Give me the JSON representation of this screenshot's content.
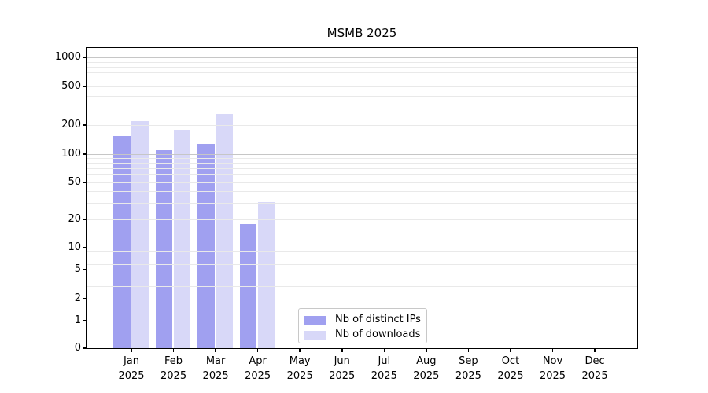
{
  "figure": {
    "background": "#ffffff"
  },
  "chart_data": {
    "type": "bar",
    "title": "MSMB 2025",
    "categories": [
      "Jan 2025",
      "Feb 2025",
      "Mar 2025",
      "Apr 2025",
      "May 2025",
      "Jun 2025",
      "Jul 2025",
      "Aug 2025",
      "Sep 2025",
      "Oct 2025",
      "Nov 2025",
      "Dec 2025"
    ],
    "series": [
      {
        "name": "Nb of distinct IPs",
        "color": "#a0a0f0",
        "values": [
          155,
          110,
          128,
          18,
          null,
          null,
          null,
          null,
          null,
          null,
          null,
          null
        ]
      },
      {
        "name": "Nb of downloads",
        "color": "#d8d8f8",
        "values": [
          220,
          180,
          260,
          31,
          null,
          null,
          null,
          null,
          null,
          null,
          null,
          null
        ]
      }
    ],
    "y_axis": {
      "scale": "log-like with 0 baseline",
      "tick_values": [
        0,
        1,
        2,
        5,
        10,
        20,
        50,
        100,
        200,
        500,
        1000
      ],
      "tick_labels": [
        "0",
        "1",
        "2",
        "5",
        "10",
        "20",
        "50",
        "100",
        "200",
        "500",
        "1000"
      ],
      "range": [
        0,
        1250
      ]
    },
    "x_axis": {
      "tick_labels_line1": [
        "Jan",
        "Feb",
        "Mar",
        "Apr",
        "May",
        "Jun",
        "Jul",
        "Aug",
        "Sep",
        "Oct",
        "Nov",
        "Dec"
      ],
      "tick_labels_line2": "2025"
    },
    "grid": {
      "major_values": [
        1,
        10,
        100,
        1000
      ],
      "minor_values": [
        2,
        3,
        4,
        5,
        6,
        7,
        8,
        9,
        20,
        30,
        40,
        50,
        60,
        70,
        80,
        90,
        200,
        300,
        400,
        500,
        600,
        700,
        800,
        900
      ],
      "major_color": "#c6c6c6",
      "minor_color": "#e9e9e9"
    },
    "legend": {
      "position": "inside lower-center"
    }
  }
}
